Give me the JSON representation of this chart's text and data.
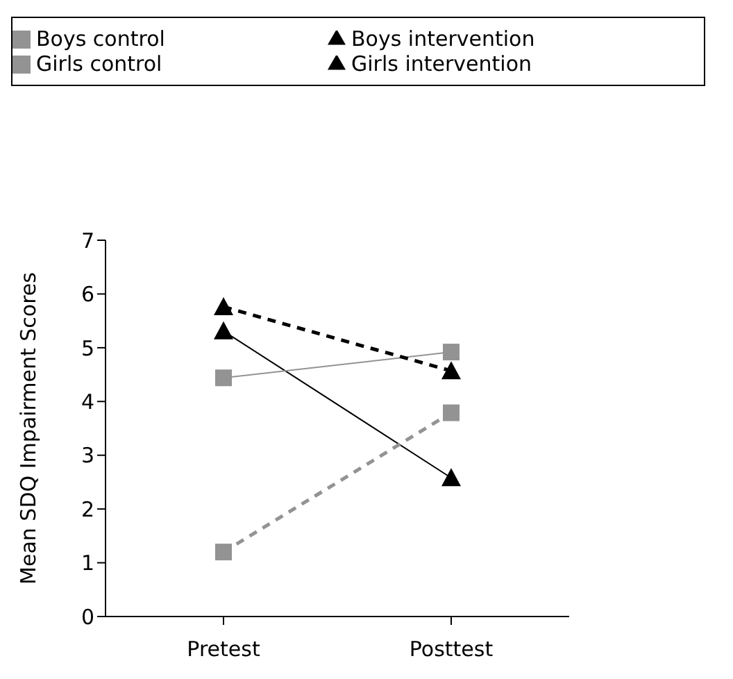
{
  "chart_data": {
    "type": "line",
    "ylabel": "Mean SDQ Impairment Scores",
    "categories": [
      "Pretest",
      "Posttest"
    ],
    "ylim": [
      0,
      7
    ],
    "yticks": [
      0,
      1,
      2,
      3,
      4,
      5,
      6,
      7
    ],
    "grid": false,
    "legend": "top",
    "series": [
      {
        "name": "Girls intervention",
        "color": "#000000",
        "values": [
          5.31,
          2.58
        ],
        "marker": "triangle",
        "line_style": "solid"
      },
      {
        "name": "Girls control",
        "color": "#939393",
        "values": [
          4.44,
          4.92
        ],
        "marker": "square",
        "line_style": "solid"
      },
      {
        "name": "Boys intervention",
        "color": "#000000",
        "values": [
          5.76,
          4.57
        ],
        "marker": "triangle",
        "line_style": "dashed"
      },
      {
        "name": "Boys control",
        "color": "#939393",
        "values": [
          1.2,
          3.79
        ],
        "marker": "square",
        "line_style": "dashed"
      }
    ]
  }
}
